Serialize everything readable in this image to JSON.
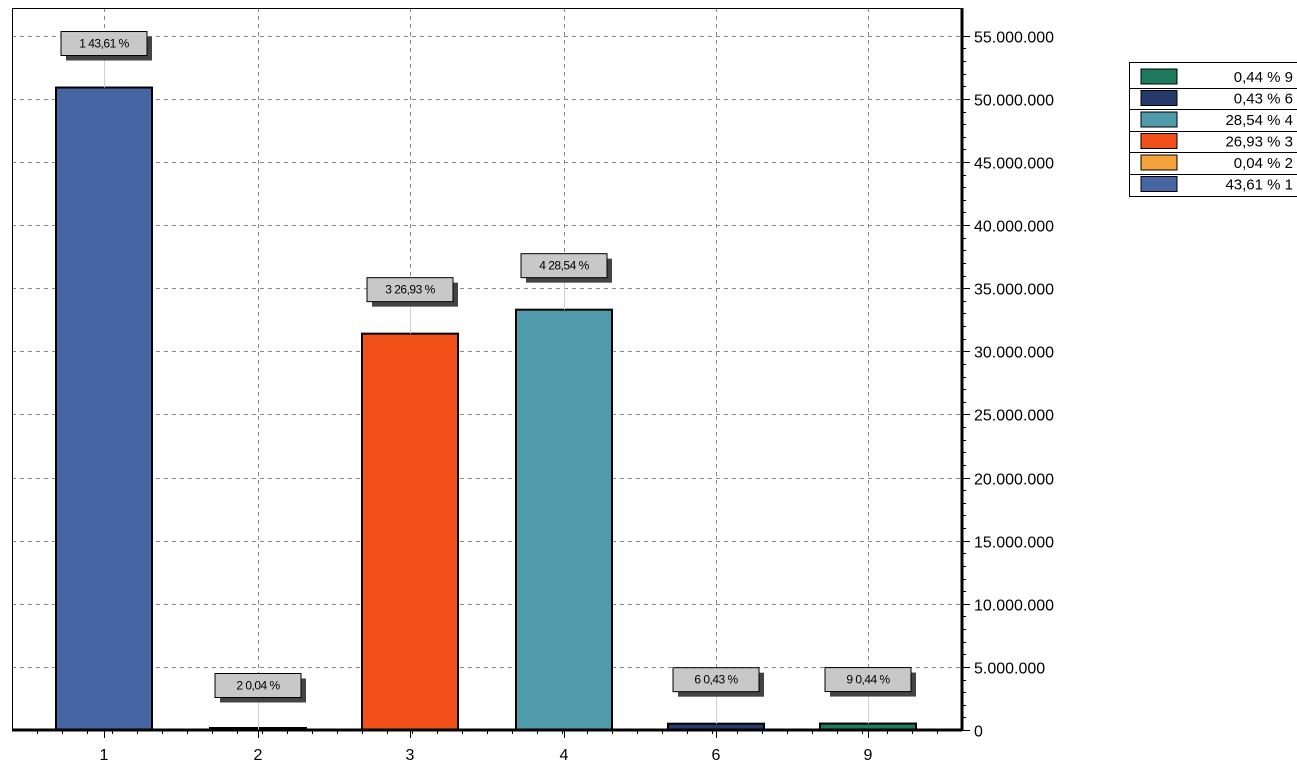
{
  "chart_data": {
    "type": "bar",
    "categories": [
      "1",
      "2",
      "3",
      "4",
      "6",
      "9"
    ],
    "values": [
      50900000,
      40000,
      31400000,
      33300000,
      500000,
      510000
    ],
    "data_labels": [
      "1 43,61 %",
      "2 0,04 %",
      "3 26,93 %",
      "4 28,54 %",
      "6 0,43 %",
      "9 0,44 %"
    ],
    "colors": [
      "#4565a3",
      "#f5a13c",
      "#f15018",
      "#4f9aab",
      "#253a6b",
      "#1e7a5d"
    ],
    "y_ticks": [
      0,
      5000000,
      10000000,
      15000000,
      20000000,
      25000000,
      30000000,
      35000000,
      40000000,
      45000000,
      50000000,
      55000000
    ],
    "y_tick_labels": [
      "0",
      "5.000.000",
      "10.000.000",
      "15.000.000",
      "20.000.000",
      "25.000.000",
      "30.000.000",
      "35.000.000",
      "40.000.000",
      "45.000.000",
      "50.000.000",
      "55.000.000"
    ],
    "ylim": [
      0,
      57200000
    ],
    "y_axis_side": "right",
    "grid": true,
    "legend": {
      "placement": "right",
      "entries": [
        {
          "label": "0,44 % 9",
          "color": "#1e7a5d"
        },
        {
          "label": "0,43 % 6",
          "color": "#253a6b"
        },
        {
          "label": "28,54 % 4",
          "color": "#4f9aab"
        },
        {
          "label": "26,93 % 3",
          "color": "#f15018"
        },
        {
          "label": "0,04 % 2",
          "color": "#f5a13c"
        },
        {
          "label": "43,61 % 1",
          "color": "#4565a3"
        }
      ]
    }
  }
}
